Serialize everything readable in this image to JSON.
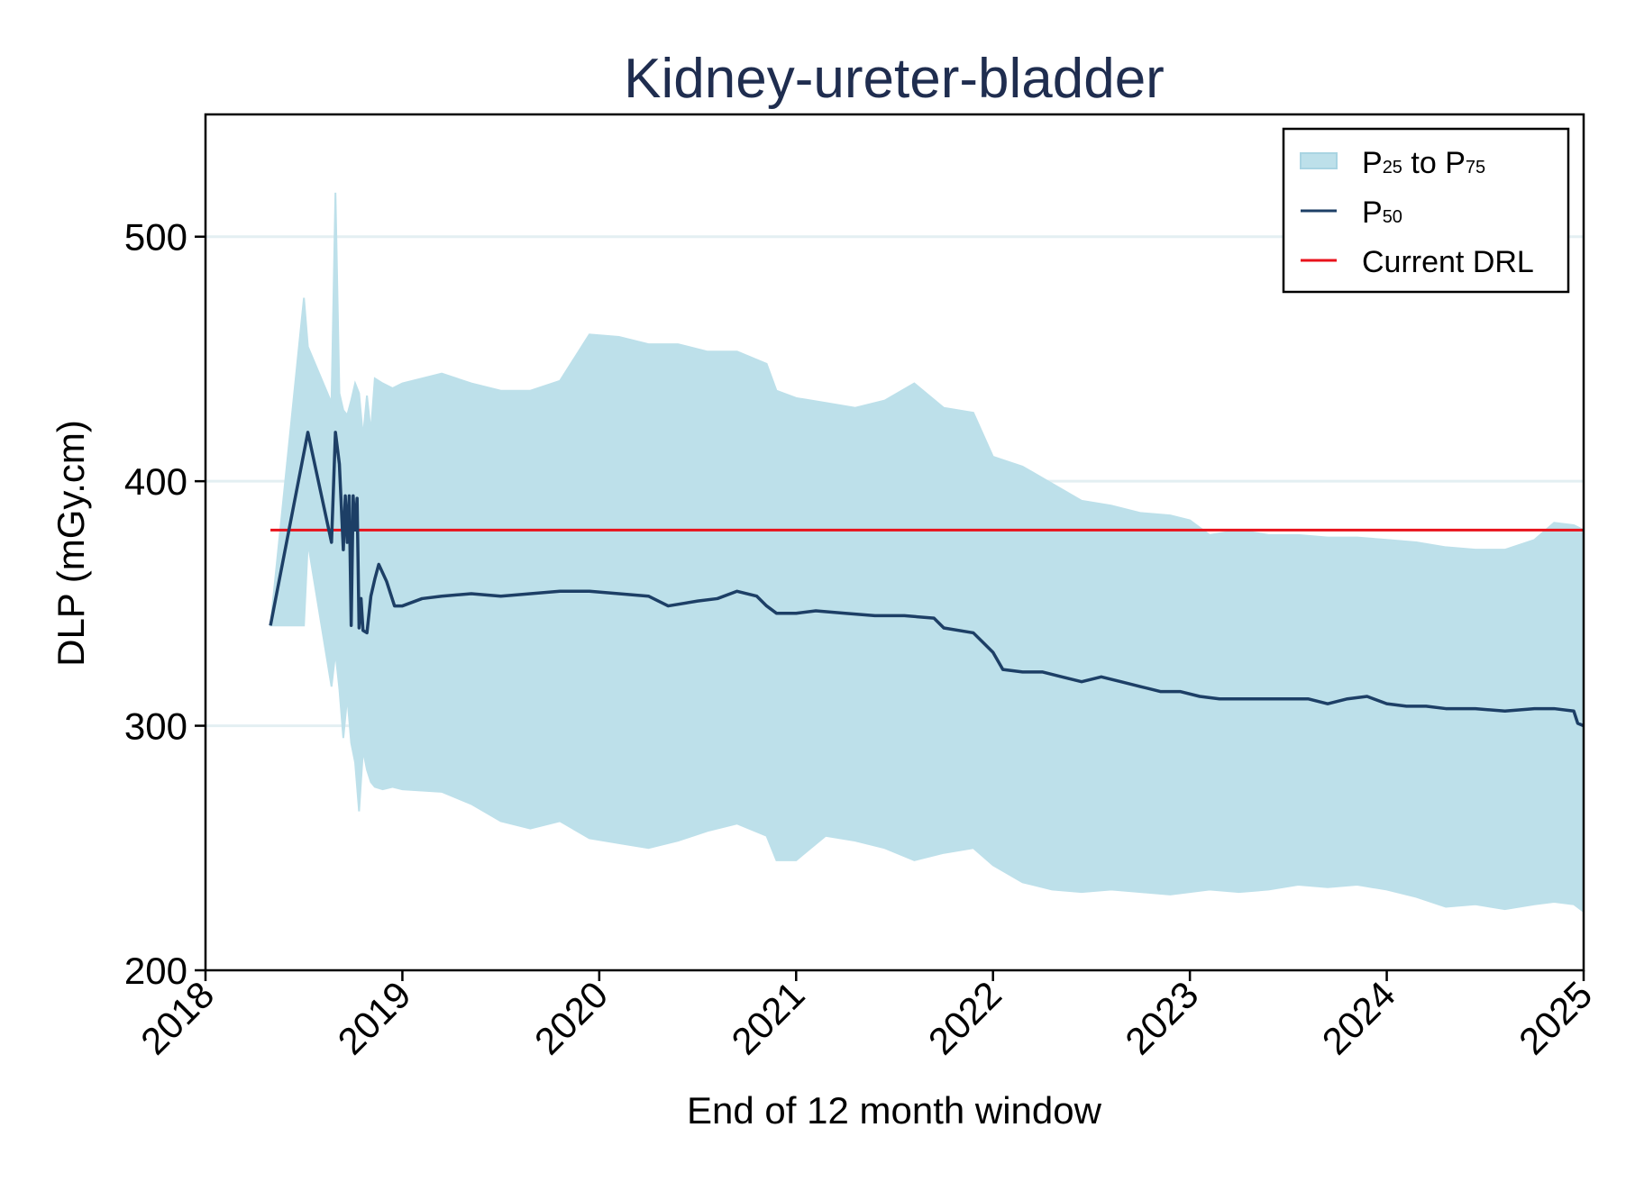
{
  "chart_data": {
    "type": "area",
    "title": "Kidney-ureter-bladder",
    "xlabel": "End of 12 month window",
    "ylabel": "DLP (mGy.cm)",
    "xlim": [
      2018,
      2025
    ],
    "ylim": [
      200,
      550
    ],
    "x_ticks": [
      2018,
      2019,
      2020,
      2021,
      2022,
      2023,
      2024,
      2025
    ],
    "y_ticks": [
      200,
      300,
      400,
      500
    ],
    "colors": {
      "band": "#bde0ea",
      "median": "#1d3f66",
      "drl": "#e8121b",
      "title": "#1f2d4f"
    },
    "legend": {
      "position": "top-right",
      "items": [
        {
          "key": "band",
          "base1": "P",
          "sub1": "25",
          "mid": " to ",
          "base2": "P",
          "sub2": "75"
        },
        {
          "key": "median",
          "base1": "P",
          "sub1": "50"
        },
        {
          "key": "drl",
          "text": "Current DRL"
        }
      ]
    },
    "drl": {
      "value": 380,
      "x_start": 2018.33,
      "x_end": 2025.0
    },
    "series": [
      {
        "name": "P25 to P75",
        "kind": "band",
        "points": [
          [
            2018.33,
            341,
            341
          ],
          [
            2018.5,
            341,
            475
          ],
          [
            2018.52,
            375,
            455
          ],
          [
            2018.64,
            316,
            432
          ],
          [
            2018.66,
            330,
            518
          ],
          [
            2018.68,
            315,
            436
          ],
          [
            2018.7,
            295,
            429
          ],
          [
            2018.72,
            312,
            427
          ],
          [
            2018.74,
            293,
            433
          ],
          [
            2018.76,
            285,
            440
          ],
          [
            2018.78,
            265,
            436
          ],
          [
            2018.8,
            290,
            418
          ],
          [
            2018.82,
            282,
            435
          ],
          [
            2018.84,
            277,
            420
          ],
          [
            2018.86,
            275,
            442
          ],
          [
            2018.9,
            274,
            440
          ],
          [
            2018.95,
            275,
            438
          ],
          [
            2019.0,
            274,
            440
          ],
          [
            2019.2,
            273,
            444
          ],
          [
            2019.35,
            268,
            440
          ],
          [
            2019.5,
            261,
            437
          ],
          [
            2019.65,
            258,
            437
          ],
          [
            2019.8,
            261,
            441
          ],
          [
            2019.95,
            254,
            460
          ],
          [
            2020.1,
            252,
            459
          ],
          [
            2020.25,
            250,
            456
          ],
          [
            2020.4,
            253,
            456
          ],
          [
            2020.55,
            257,
            453
          ],
          [
            2020.7,
            260,
            453
          ],
          [
            2020.85,
            255,
            448
          ],
          [
            2020.9,
            245,
            437
          ],
          [
            2021.0,
            245,
            434
          ],
          [
            2021.15,
            255,
            432
          ],
          [
            2021.3,
            253,
            430
          ],
          [
            2021.45,
            250,
            433
          ],
          [
            2021.6,
            245,
            440
          ],
          [
            2021.75,
            248,
            430
          ],
          [
            2021.9,
            250,
            428
          ],
          [
            2022.0,
            243,
            410
          ],
          [
            2022.15,
            236,
            406
          ],
          [
            2022.3,
            233,
            399
          ],
          [
            2022.45,
            232,
            392
          ],
          [
            2022.6,
            233,
            390
          ],
          [
            2022.75,
            232,
            387
          ],
          [
            2022.9,
            231,
            386
          ],
          [
            2023.0,
            232,
            384
          ],
          [
            2023.1,
            233,
            378
          ],
          [
            2023.25,
            232,
            380
          ],
          [
            2023.4,
            233,
            378
          ],
          [
            2023.55,
            235,
            378
          ],
          [
            2023.7,
            234,
            377
          ],
          [
            2023.85,
            235,
            377
          ],
          [
            2024.0,
            233,
            376
          ],
          [
            2024.15,
            230,
            375
          ],
          [
            2024.3,
            226,
            373
          ],
          [
            2024.45,
            227,
            372
          ],
          [
            2024.6,
            225,
            372
          ],
          [
            2024.75,
            227,
            376
          ],
          [
            2024.85,
            228,
            383
          ],
          [
            2024.95,
            227,
            382
          ],
          [
            2025.0,
            224,
            380
          ]
        ]
      },
      {
        "name": "P50",
        "kind": "line",
        "points": [
          [
            2018.33,
            341
          ],
          [
            2018.52,
            420
          ],
          [
            2018.64,
            375
          ],
          [
            2018.66,
            420
          ],
          [
            2018.68,
            407
          ],
          [
            2018.7,
            372
          ],
          [
            2018.71,
            394
          ],
          [
            2018.72,
            375
          ],
          [
            2018.73,
            394
          ],
          [
            2018.74,
            341
          ],
          [
            2018.75,
            394
          ],
          [
            2018.76,
            380
          ],
          [
            2018.77,
            393
          ],
          [
            2018.78,
            340
          ],
          [
            2018.79,
            352
          ],
          [
            2018.8,
            339
          ],
          [
            2018.82,
            338
          ],
          [
            2018.84,
            353
          ],
          [
            2018.86,
            360
          ],
          [
            2018.88,
            366
          ],
          [
            2018.92,
            359
          ],
          [
            2018.96,
            349
          ],
          [
            2019.0,
            349
          ],
          [
            2019.1,
            352
          ],
          [
            2019.2,
            353
          ],
          [
            2019.35,
            354
          ],
          [
            2019.5,
            353
          ],
          [
            2019.65,
            354
          ],
          [
            2019.8,
            355
          ],
          [
            2019.95,
            355
          ],
          [
            2020.1,
            354
          ],
          [
            2020.25,
            353
          ],
          [
            2020.35,
            349
          ],
          [
            2020.5,
            351
          ],
          [
            2020.6,
            352
          ],
          [
            2020.7,
            355
          ],
          [
            2020.8,
            353
          ],
          [
            2020.85,
            349
          ],
          [
            2020.9,
            346
          ],
          [
            2021.0,
            346
          ],
          [
            2021.1,
            347
          ],
          [
            2021.25,
            346
          ],
          [
            2021.4,
            345
          ],
          [
            2021.55,
            345
          ],
          [
            2021.7,
            344
          ],
          [
            2021.75,
            340
          ],
          [
            2021.9,
            338
          ],
          [
            2021.95,
            334
          ],
          [
            2022.0,
            330
          ],
          [
            2022.05,
            323
          ],
          [
            2022.15,
            322
          ],
          [
            2022.25,
            322
          ],
          [
            2022.35,
            320
          ],
          [
            2022.45,
            318
          ],
          [
            2022.55,
            320
          ],
          [
            2022.65,
            318
          ],
          [
            2022.75,
            316
          ],
          [
            2022.85,
            314
          ],
          [
            2022.95,
            314
          ],
          [
            2023.05,
            312
          ],
          [
            2023.15,
            311
          ],
          [
            2023.3,
            311
          ],
          [
            2023.45,
            311
          ],
          [
            2023.6,
            311
          ],
          [
            2023.7,
            309
          ],
          [
            2023.8,
            311
          ],
          [
            2023.9,
            312
          ],
          [
            2024.0,
            309
          ],
          [
            2024.1,
            308
          ],
          [
            2024.2,
            308
          ],
          [
            2024.3,
            307
          ],
          [
            2024.45,
            307
          ],
          [
            2024.6,
            306
          ],
          [
            2024.75,
            307
          ],
          [
            2024.85,
            307
          ],
          [
            2024.95,
            306
          ],
          [
            2024.97,
            301
          ],
          [
            2025.0,
            300
          ]
        ]
      }
    ]
  }
}
